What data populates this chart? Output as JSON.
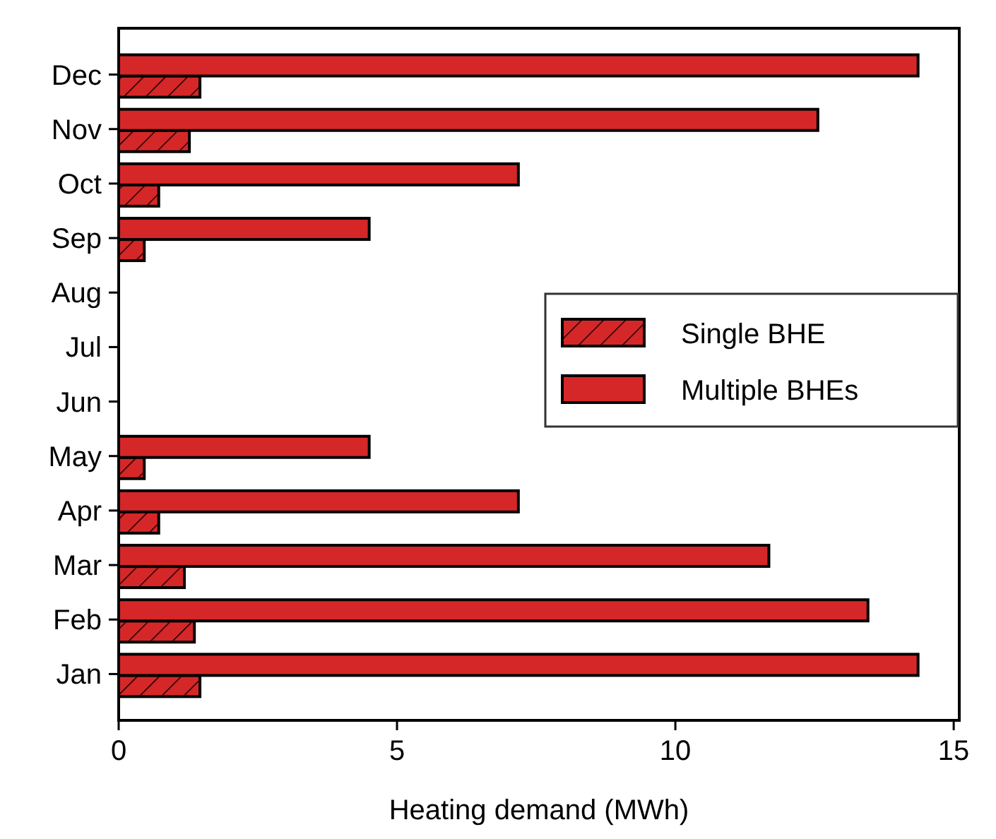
{
  "chart_data": {
    "type": "bar",
    "orientation": "horizontal",
    "xlabel": "Heating demand (MWh)",
    "categories": [
      "Dec",
      "Nov",
      "Oct",
      "Sep",
      "Aug",
      "Jul",
      "Jun",
      "May",
      "Apr",
      "Mar",
      "Feb",
      "Jan"
    ],
    "series": [
      {
        "name": "Single BHE",
        "color": "#d62728",
        "values": [
          1.46,
          1.27,
          0.72,
          0.46,
          0,
          0,
          0,
          0.46,
          0.72,
          1.18,
          1.36,
          1.46
        ]
      },
      {
        "name": "Multiple BHEs",
        "color": "#d62728",
        "values": [
          14.36,
          12.56,
          7.18,
          4.5,
          0,
          0,
          0,
          4.5,
          7.18,
          11.68,
          13.46,
          14.36
        ]
      }
    ],
    "xlim": [
      0,
      15.1
    ],
    "xticks": [
      0,
      5,
      10,
      15
    ],
    "grid": false,
    "legend": "right"
  }
}
